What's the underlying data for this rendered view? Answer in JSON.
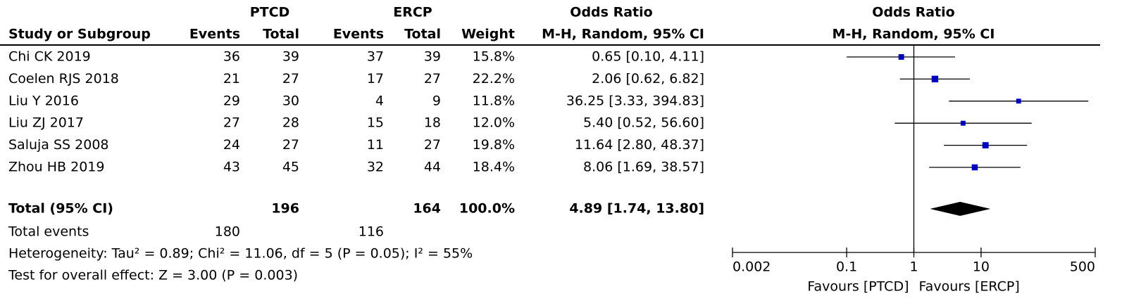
{
  "chart_data": {
    "type": "forest",
    "headers": {
      "group1": "PTCD",
      "group2": "ERCP",
      "study": "Study or Subgroup",
      "events1": "Events",
      "total1": "Total",
      "events2": "Events",
      "total2": "Total",
      "weight": "Weight",
      "or_title": "Odds Ratio",
      "or_method": "M-H, Random, 95% CI",
      "plot_title": "Odds Ratio",
      "plot_method": "M-H, Random, 95% CI"
    },
    "studies": [
      {
        "name": "Chi CK 2019",
        "e1": 36,
        "n1": 39,
        "e2": 37,
        "n2": 39,
        "weight": 15.8,
        "weight_label": "15.8%",
        "or": 0.65,
        "lower": 0.1,
        "upper": 4.11,
        "ci_label": "0.65 [0.10, 4.11]"
      },
      {
        "name": "Coelen RJS 2018",
        "e1": 21,
        "n1": 27,
        "e2": 17,
        "n2": 27,
        "weight": 22.2,
        "weight_label": "22.2%",
        "or": 2.06,
        "lower": 0.62,
        "upper": 6.82,
        "ci_label": "2.06 [0.62, 6.82]"
      },
      {
        "name": "Liu Y 2016",
        "e1": 29,
        "n1": 30,
        "e2": 4,
        "n2": 9,
        "weight": 11.8,
        "weight_label": "11.8%",
        "or": 36.25,
        "lower": 3.33,
        "upper": 394.83,
        "ci_label": "36.25 [3.33, 394.83]"
      },
      {
        "name": "Liu ZJ 2017",
        "e1": 27,
        "n1": 28,
        "e2": 15,
        "n2": 18,
        "weight": 12.0,
        "weight_label": "12.0%",
        "or": 5.4,
        "lower": 0.52,
        "upper": 56.6,
        "ci_label": "5.40 [0.52, 56.60]"
      },
      {
        "name": "Saluja SS 2008",
        "e1": 24,
        "n1": 27,
        "e2": 11,
        "n2": 27,
        "weight": 19.8,
        "weight_label": "19.8%",
        "or": 11.64,
        "lower": 2.8,
        "upper": 48.37,
        "ci_label": "11.64 [2.80, 48.37]"
      },
      {
        "name": "Zhou HB 2019",
        "e1": 43,
        "n1": 45,
        "e2": 32,
        "n2": 44,
        "weight": 18.4,
        "weight_label": "18.4%",
        "or": 8.06,
        "lower": 1.69,
        "upper": 38.57,
        "ci_label": "8.06 [1.69, 38.57]"
      }
    ],
    "total": {
      "label": "Total (95% CI)",
      "n1": 196,
      "n2": 164,
      "weight": 100.0,
      "weight_label": "100.0%",
      "or": 4.89,
      "lower": 1.74,
      "upper": 13.8,
      "ci_label": "4.89 [1.74, 13.80]"
    },
    "total_events": {
      "label": "Total events",
      "e1": 180,
      "e2": 116
    },
    "heterogeneity": "Heterogeneity: Tau² = 0.89; Chi² = 11.06, df = 5 (P = 0.05); I² = 55%",
    "overall_effect": "Test for overall effect: Z = 3.00 (P = 0.003)",
    "xscale": "log",
    "xlim": [
      0.002,
      500
    ],
    "xticks": [
      0.002,
      0.1,
      1,
      10,
      500
    ],
    "favours": [
      "Favours [PTCD]",
      "Favours [ERCP]"
    ],
    "color": "#0000bb"
  }
}
